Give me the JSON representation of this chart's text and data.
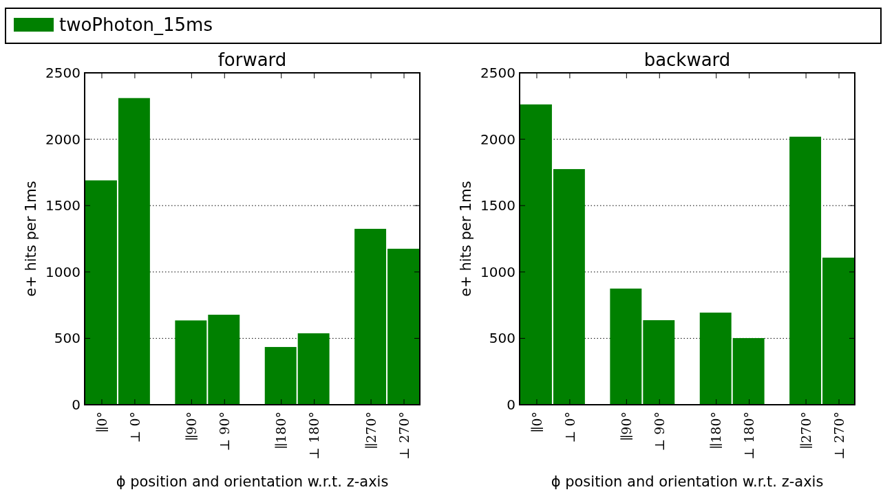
{
  "chart_data": [
    {
      "type": "bar",
      "title": "forward",
      "xlabel": "ϕ position and orientation w.r.t. z-axis",
      "ylabel": "e+ hits per 1ms",
      "categories": [
        "∥0°",
        "⊥ 0°",
        "∥90°",
        "⊥ 90°",
        "∥180°",
        "⊥ 180°",
        "∥270°",
        "⊥ 270°"
      ],
      "series": [
        {
          "name": "twoPhoton_15ms",
          "color": "#008000",
          "values": [
            1690,
            2310,
            635,
            678,
            435,
            538,
            1325,
            1175
          ]
        }
      ],
      "ylim": [
        0,
        2500
      ],
      "yticks": [
        0,
        500,
        1000,
        1500,
        2000,
        2500
      ],
      "grid": "y",
      "legend": "top"
    },
    {
      "type": "bar",
      "title": "backward",
      "xlabel": "ϕ position and orientation w.r.t. z-axis",
      "ylabel": "e+ hits per 1ms",
      "categories": [
        "∥0°",
        "⊥ 0°",
        "∥90°",
        "⊥ 90°",
        "∥180°",
        "⊥ 180°",
        "∥270°",
        "⊥ 270°"
      ],
      "series": [
        {
          "color": "#008000",
          "values": [
            2262,
            1775,
            875,
            637,
            694,
            502,
            2019,
            1108
          ]
        }
      ],
      "ylim": [
        0,
        2500
      ],
      "yticks": [
        0,
        500,
        1000,
        1500,
        2000,
        2500
      ],
      "grid": "y"
    }
  ]
}
